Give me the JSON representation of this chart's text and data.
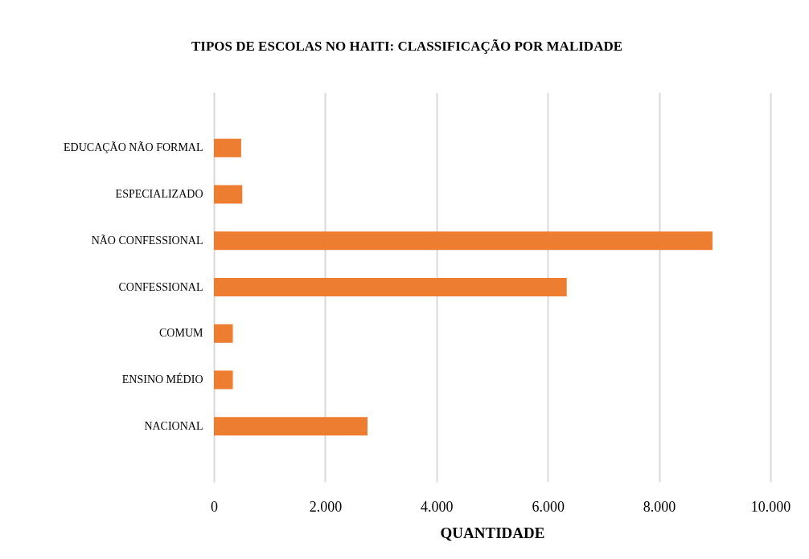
{
  "chart_data": {
    "type": "bar",
    "orientation": "horizontal",
    "title": "TIPOS DE ESCOLAS NO HAITI: CLASSIFICAÇÃO POR MALIDADE",
    "xlabel": "QUANTIDADE",
    "categories": [
      "EDUCAÇÃO NÃO FORMAL",
      "ESPECIALIZADO",
      "NÃO CONFESSIONAL",
      "CONFESSIONAL",
      "COMUM",
      "ENSINO MÉDIO",
      "NACIONAL"
    ],
    "values": [
      490,
      510,
      8960,
      6340,
      340,
      340,
      2760
    ],
    "color": "#ed7d31",
    "xlim": [
      0,
      10000
    ],
    "xticks": [
      {
        "value": 0,
        "label": "0"
      },
      {
        "value": 2000,
        "label": "2.000"
      },
      {
        "value": 4000,
        "label": "4.000"
      },
      {
        "value": 6000,
        "label": "6.000"
      },
      {
        "value": 8000,
        "label": "8.000"
      },
      {
        "value": 10000,
        "label": "10.000"
      }
    ],
    "grid": "x"
  }
}
